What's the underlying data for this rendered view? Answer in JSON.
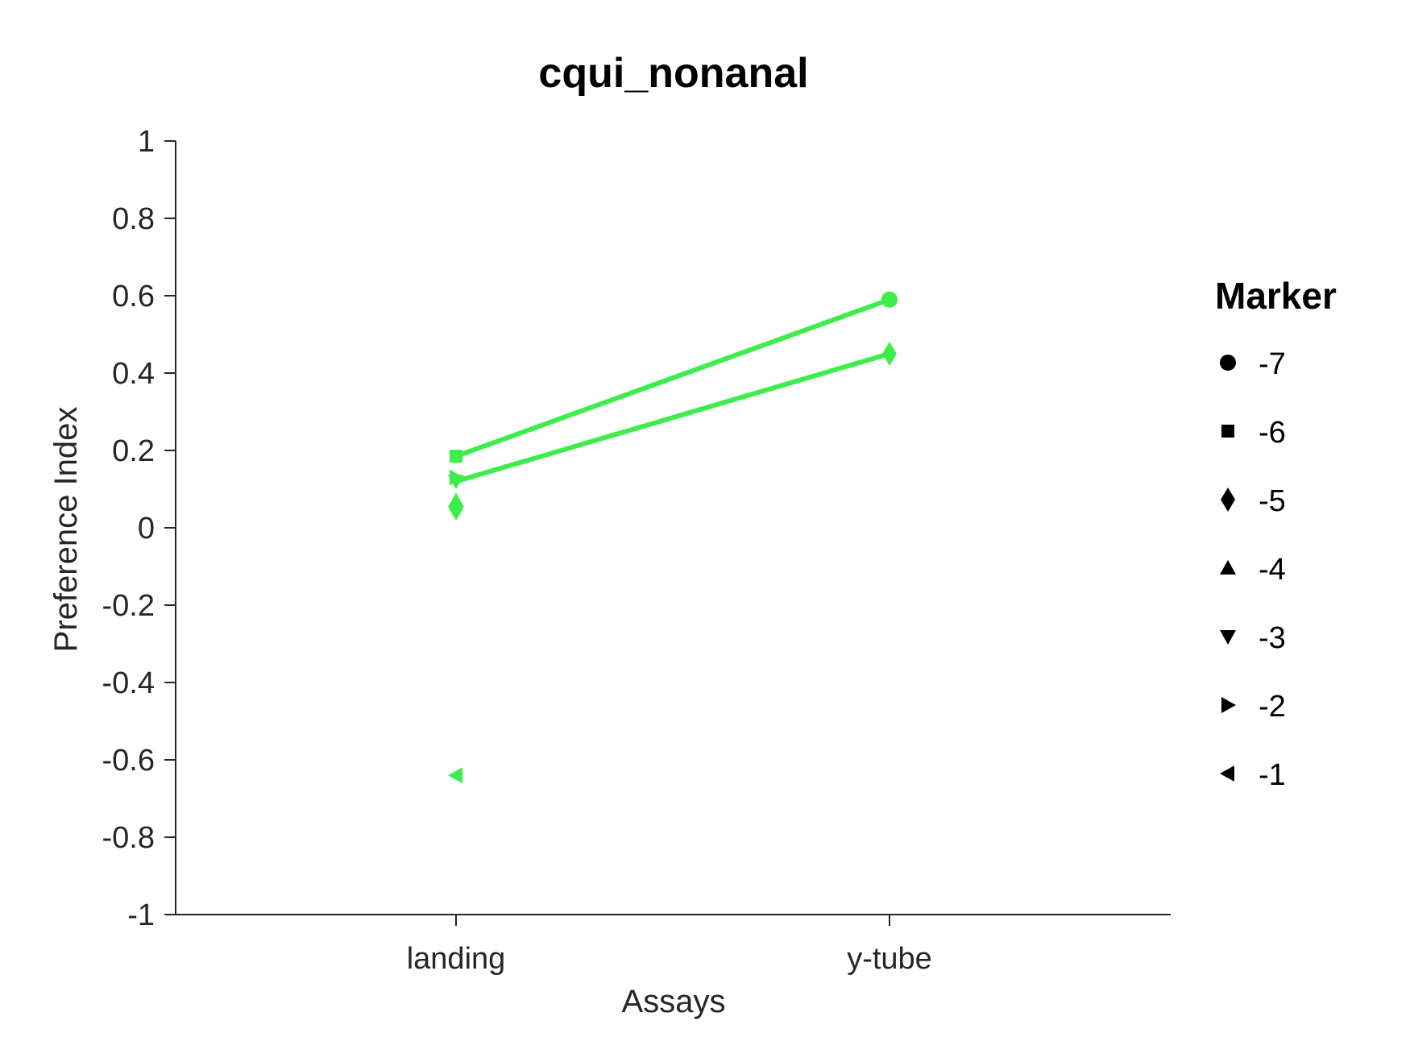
{
  "chart_data": {
    "type": "line",
    "title": "cqui_nonanal",
    "xlabel": "Assays",
    "ylabel": "Preference Index",
    "categories": [
      "landing",
      "y-tube"
    ],
    "ylim": [
      -1,
      1
    ],
    "yticks": [
      "1",
      "0.8",
      "0.6",
      "0.4",
      "0.2",
      "0",
      "-0.2",
      "-0.4",
      "-0.6",
      "-0.8",
      "-1"
    ],
    "ytick_values": [
      1,
      0.8,
      0.6,
      0.4,
      0.2,
      0,
      -0.2,
      -0.4,
      -0.6,
      -0.8,
      -1
    ],
    "color": "#3dee4b",
    "series": [
      {
        "marker": "circle",
        "values": [
          null,
          0.59
        ]
      },
      {
        "marker": "square",
        "values": [
          0.185,
          null
        ]
      },
      {
        "marker": "diamond",
        "values": [
          0.05,
          0.45
        ]
      },
      {
        "marker": "triangle-up",
        "values": [
          0.07,
          null
        ]
      },
      {
        "marker": "triangle-down",
        "values": [
          0.12,
          null
        ]
      },
      {
        "marker": "triangle-right",
        "values": [
          0.13,
          null
        ]
      },
      {
        "marker": "triangle-left",
        "values": [
          -0.64,
          null
        ]
      }
    ],
    "lines": [
      {
        "from": [
          0,
          0.185
        ],
        "to": [
          1,
          0.59
        ]
      },
      {
        "from": [
          0,
          0.12
        ],
        "to": [
          1,
          0.45
        ]
      }
    ],
    "grid": false,
    "legend": {
      "title": "Marker",
      "placement": "right",
      "entries": [
        {
          "label": "-7",
          "marker": "circle"
        },
        {
          "label": "-6",
          "marker": "square"
        },
        {
          "label": "-5",
          "marker": "diamond"
        },
        {
          "label": "-4",
          "marker": "triangle-up"
        },
        {
          "label": "-3",
          "marker": "triangle-down"
        },
        {
          "label": "-2",
          "marker": "triangle-right"
        },
        {
          "label": "-1",
          "marker": "triangle-left"
        }
      ]
    }
  }
}
